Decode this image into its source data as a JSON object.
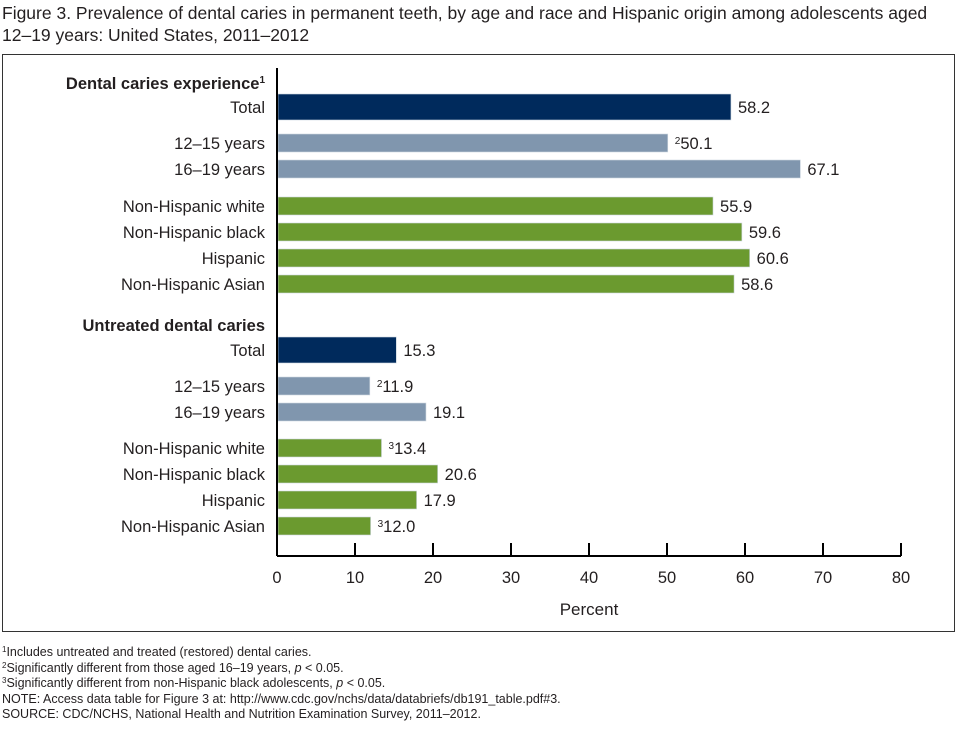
{
  "title": "Figure 3. Prevalence of dental caries in permanent teeth, by age and race and Hispanic origin among adolescents aged 12–19 years: United States, 2011–2012",
  "title_line1": "Figure 3. Prevalence of dental caries in permanent teeth, by age and race and Hispanic origin among adolescents aged",
  "title_line2": "12–19 years: United States, 2011–2012",
  "colors": {
    "total": "#002a5c",
    "age": "#8096ae",
    "race": "#6b9a2f",
    "axis": "#000000",
    "text": "#231f20"
  },
  "chart_data": {
    "type": "bar",
    "orientation": "horizontal",
    "title": "Prevalence of dental caries in permanent teeth, by age and race and Hispanic origin among adolescents aged 12–19 years: United States, 2011–2012",
    "xlabel": "Percent",
    "ylabel": "",
    "xlim": [
      0,
      80
    ],
    "xticks": [
      0,
      10,
      20,
      30,
      40,
      50,
      60,
      70,
      80
    ],
    "grid": false,
    "groups": [
      {
        "name": "Dental caries experience",
        "name_superscript": "1",
        "bars": [
          {
            "label": "Total",
            "value": 58.2,
            "kind": "total",
            "value_label": "58.2",
            "note": ""
          },
          {
            "label": "12–15 years",
            "value": 50.1,
            "kind": "age",
            "value_label": "50.1",
            "note": "2"
          },
          {
            "label": "16–19 years",
            "value": 67.1,
            "kind": "age",
            "value_label": "67.1",
            "note": ""
          },
          {
            "label": "Non-Hispanic white",
            "value": 55.9,
            "kind": "race",
            "value_label": "55.9",
            "note": ""
          },
          {
            "label": "Non-Hispanic black",
            "value": 59.6,
            "kind": "race",
            "value_label": "59.6",
            "note": ""
          },
          {
            "label": "Hispanic",
            "value": 60.6,
            "kind": "race",
            "value_label": "60.6",
            "note": ""
          },
          {
            "label": "Non-Hispanic Asian",
            "value": 58.6,
            "kind": "race",
            "value_label": "58.6",
            "note": ""
          }
        ]
      },
      {
        "name": "Untreated dental caries",
        "name_superscript": "",
        "bars": [
          {
            "label": "Total",
            "value": 15.3,
            "kind": "total",
            "value_label": "15.3",
            "note": ""
          },
          {
            "label": "12–15 years",
            "value": 11.9,
            "kind": "age",
            "value_label": "11.9",
            "note": "2"
          },
          {
            "label": "16–19 years",
            "value": 19.1,
            "kind": "age",
            "value_label": "19.1",
            "note": ""
          },
          {
            "label": "Non-Hispanic white",
            "value": 13.4,
            "kind": "race",
            "value_label": "13.4",
            "note": "3"
          },
          {
            "label": "Non-Hispanic black",
            "value": 20.6,
            "kind": "race",
            "value_label": "20.6",
            "note": ""
          },
          {
            "label": "Hispanic",
            "value": 17.9,
            "kind": "race",
            "value_label": "17.9",
            "note": ""
          },
          {
            "label": "Non-Hispanic Asian",
            "value": 12.0,
            "kind": "race",
            "value_label": "12.0",
            "note": "3"
          }
        ]
      }
    ]
  },
  "footnotes": [
    {
      "mark": "1",
      "text": "Includes untreated and treated (restored) dental caries.",
      "italic": "",
      "after": ""
    },
    {
      "mark": "2",
      "text": "Significantly different from those aged 16–19 years, ",
      "italic": "p",
      "after": " < 0.05."
    },
    {
      "mark": "3",
      "text": "Significantly different from non-Hispanic black adolescents, ",
      "italic": "p",
      "after": " < 0.05."
    },
    {
      "mark": "",
      "text": "NOTE: Access data table for Figure 3 at: http://www.cdc.gov/nchs/data/databriefs/db191_table.pdf#3.",
      "italic": "",
      "after": ""
    },
    {
      "mark": "",
      "text": "SOURCE: CDC/NCHS, National Health and Nutrition Examination Survey, 2011–2012.",
      "italic": "",
      "after": ""
    }
  ]
}
